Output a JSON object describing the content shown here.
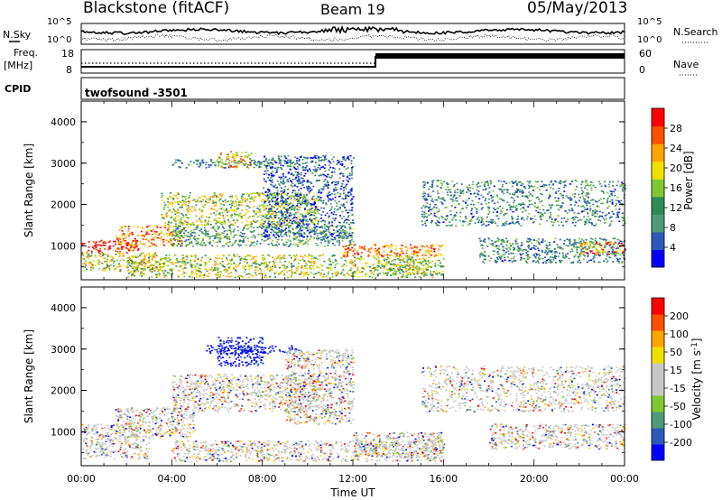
{
  "header": {
    "station": "Blackstone (fitACF)",
    "beam": "Beam 19",
    "date": "05/May/2013"
  },
  "status_panels": {
    "nsky_label": "N.Sky",
    "nsearch_label": "N.Search",
    "noise_ticks": [
      "10^5",
      "10^0"
    ],
    "freq_label_line1": "Freq.",
    "freq_label_line2": "[MHz]",
    "freq_ticks": [
      "18",
      "8"
    ],
    "nave_label": "Nave",
    "nave_ticks": [
      "60",
      "0"
    ],
    "cpid_label": "CPID",
    "cpid_value": "twofsound -3501"
  },
  "x_axis": {
    "label": "Time UT",
    "ticks": [
      "00:00",
      "04:00",
      "08:00",
      "12:00",
      "16:00",
      "20:00",
      "00:00"
    ]
  },
  "colors": {
    "power_scale": [
      "#0000ff",
      "#2b59b9",
      "#4f9a7a",
      "#2e8b57",
      "#7ec832",
      "#f0e000",
      "#ffa500",
      "#ff5000",
      "#ff0000"
    ],
    "velocity_scale": [
      "#ff0000",
      "#ff5000",
      "#ffa500",
      "#f0e000",
      "#c8c8c8",
      "#c8c8c8",
      "#7ec832",
      "#4f9a7a",
      "#2b59b9",
      "#0000ff"
    ]
  },
  "chart_data": [
    {
      "type": "heatmap",
      "panel": "power",
      "ylabel": "Slant Range [km]",
      "xlabel": "",
      "xlim_hours": [
        0,
        24
      ],
      "ylim": [
        180,
        4500
      ],
      "yticks": [
        "1000",
        "2000",
        "3000",
        "4000"
      ],
      "colorbar": {
        "label": "Power [dB]",
        "ticks": [
          "4",
          "8",
          "12",
          "16",
          "20",
          "24",
          "28"
        ]
      },
      "echo_regions": [
        {
          "t0": 0.0,
          "t1": 2.5,
          "r0": 850,
          "r1": 1150,
          "level": 0.95
        },
        {
          "t0": 0.0,
          "t1": 3.5,
          "r0": 400,
          "r1": 850,
          "level": 0.6
        },
        {
          "t0": 1.5,
          "t1": 4.5,
          "r0": 1000,
          "r1": 1500,
          "level": 0.75
        },
        {
          "t0": 3.5,
          "t1": 10.5,
          "r0": 1500,
          "r1": 2300,
          "level": 0.55
        },
        {
          "t0": 4.0,
          "t1": 9.5,
          "r0": 2900,
          "r1": 3100,
          "level": 0.3
        },
        {
          "t0": 4.0,
          "t1": 12.0,
          "r0": 1000,
          "r1": 1500,
          "level": 0.35
        },
        {
          "t0": 6.0,
          "t1": 7.5,
          "r0": 2900,
          "r1": 3300,
          "level": 0.65
        },
        {
          "t0": 8.0,
          "t1": 12.0,
          "r0": 1200,
          "r1": 3200,
          "level": 0.2
        },
        {
          "t0": 2.0,
          "t1": 15.5,
          "r0": 250,
          "r1": 800,
          "level": 0.55
        },
        {
          "t0": 11.5,
          "t1": 16.0,
          "r0": 750,
          "r1": 1050,
          "level": 0.8
        },
        {
          "t0": 13.0,
          "t1": 16.0,
          "r0": 300,
          "r1": 700,
          "level": 0.5
        },
        {
          "t0": 15.0,
          "t1": 24.0,
          "r0": 1500,
          "r1": 2600,
          "level": 0.3
        },
        {
          "t0": 17.5,
          "t1": 24.0,
          "r0": 600,
          "r1": 1200,
          "level": 0.3
        },
        {
          "t0": 22.0,
          "t1": 24.0,
          "r0": 800,
          "r1": 1100,
          "level": 0.75
        }
      ]
    },
    {
      "type": "heatmap",
      "panel": "velocity",
      "ylabel": "Slant Range [km]",
      "xlabel": "Time UT",
      "xlim_hours": [
        0,
        24
      ],
      "ylim": [
        180,
        4500
      ],
      "yticks": [
        "1000",
        "2000",
        "3000",
        "4000"
      ],
      "colorbar": {
        "label": "Velocity [m s",
        "label_sup": "-1",
        "label_end": "]",
        "ticks": [
          "200",
          "100",
          "50",
          "15",
          "-15",
          "-50",
          "-100",
          "-200"
        ]
      },
      "echo_regions": [
        {
          "t0": 0.0,
          "t1": 3.0,
          "r0": 350,
          "r1": 1200,
          "level": 0.5
        },
        {
          "t0": 1.5,
          "t1": 5.0,
          "r0": 900,
          "r1": 1600,
          "level": 0.35
        },
        {
          "t0": 4.0,
          "t1": 10.5,
          "r0": 1500,
          "r1": 2400,
          "level": 0.4
        },
        {
          "t0": 5.5,
          "t1": 9.5,
          "r0": 2900,
          "r1": 3100,
          "level": 0.97
        },
        {
          "t0": 6.0,
          "t1": 8.0,
          "r0": 2600,
          "r1": 3300,
          "level": 0.95
        },
        {
          "t0": 9.0,
          "t1": 12.0,
          "r0": 1200,
          "r1": 3000,
          "level": 0.5
        },
        {
          "t0": 4.0,
          "t1": 16.0,
          "r0": 300,
          "r1": 800,
          "level": 0.5
        },
        {
          "t0": 12.0,
          "t1": 16.0,
          "r0": 400,
          "r1": 1000,
          "level": 0.45
        },
        {
          "t0": 15.0,
          "t1": 24.0,
          "r0": 1500,
          "r1": 2600,
          "level": 0.5
        },
        {
          "t0": 18.0,
          "t1": 24.0,
          "r0": 600,
          "r1": 1200,
          "level": 0.4
        }
      ]
    }
  ]
}
